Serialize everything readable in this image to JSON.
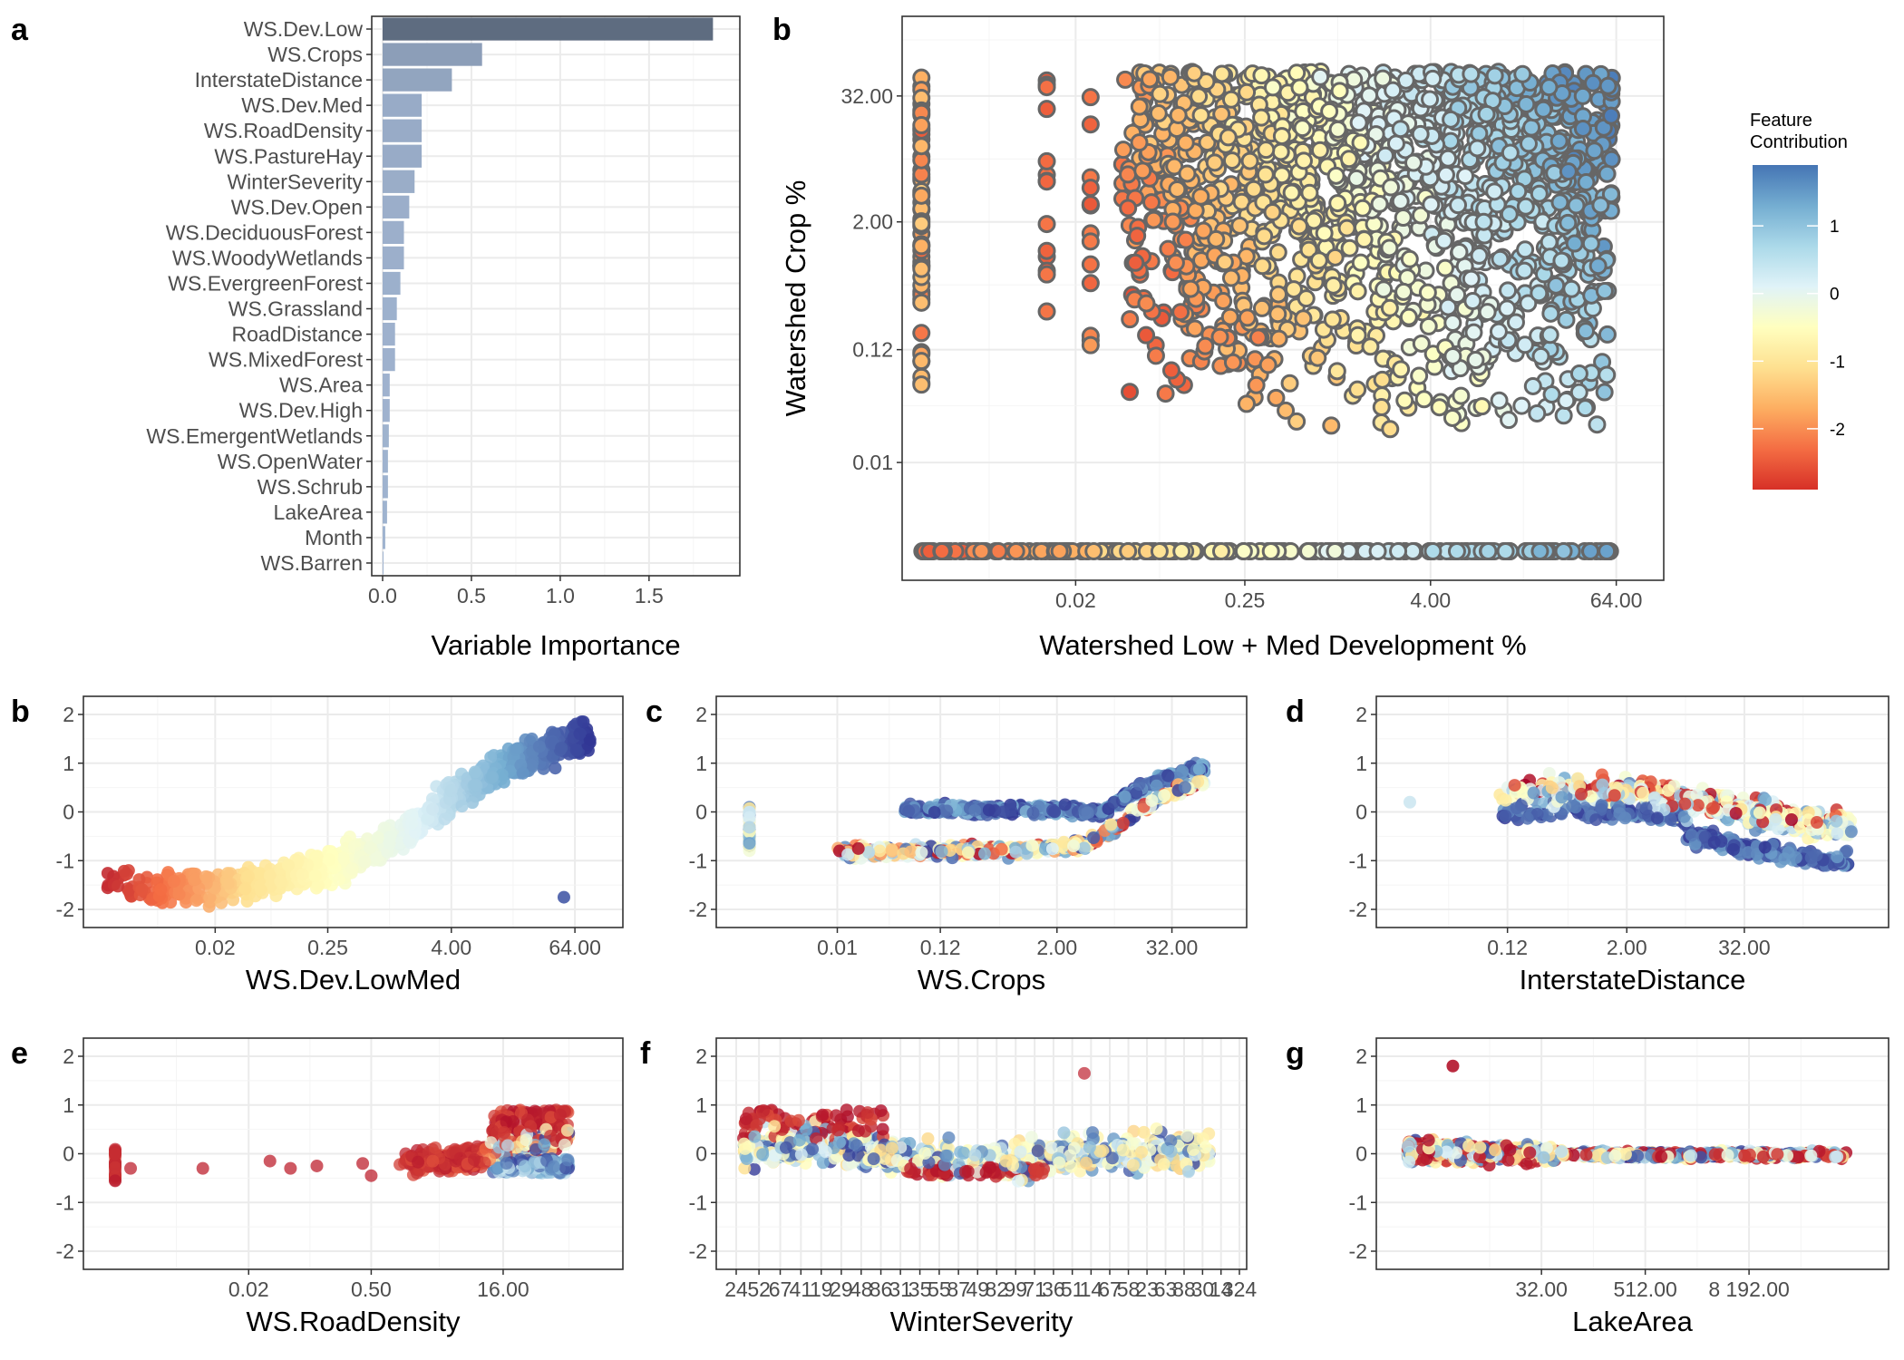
{
  "chart_data": [
    {
      "panel": "a",
      "type": "bar",
      "orientation": "horizontal",
      "xlabel": "Variable Importance",
      "ylabel": "",
      "xlim": [
        0,
        1.95
      ],
      "xticks": [
        "0.0",
        "0.5",
        "1.0",
        "1.5"
      ],
      "grid": true,
      "color_scale": "importance",
      "categories": [
        "WS.Dev.Low",
        "WS.Crops",
        "InterstateDistance",
        "WS.Dev.Med",
        "WS.RoadDensity",
        "WS.PastureHay",
        "WinterSeverity",
        "WS.Dev.Open",
        "WS.DeciduousForest",
        "WS.WoodyWetlands",
        "WS.EvergreenForest",
        "WS.Grassland",
        "RoadDistance",
        "WS.MixedForest",
        "WS.Area",
        "WS.Dev.High",
        "WS.EmergentWetlands",
        "WS.OpenWater",
        "WS.Schrub",
        "LakeArea",
        "Month",
        "WS.Barren"
      ],
      "values": [
        1.86,
        0.56,
        0.39,
        0.22,
        0.22,
        0.22,
        0.18,
        0.15,
        0.12,
        0.12,
        0.1,
        0.08,
        0.07,
        0.07,
        0.04,
        0.04,
        0.035,
        0.03,
        0.03,
        0.025,
        0.015,
        0.005
      ]
    },
    {
      "panel": "b",
      "type": "scatter",
      "xlabel": "Watershed Low + Med Development %",
      "ylabel": "Watershed Crop %",
      "x_scale": "log",
      "y_scale": "log",
      "xticks": [
        "0.02",
        "0.25",
        "4.00",
        "64.00"
      ],
      "yticks": [
        "0.01",
        "0.12",
        "2.00",
        "32.00"
      ],
      "grid": true,
      "legend": {
        "title": "Feature Contribution",
        "position": "right",
        "ticks": [
          "1",
          "0",
          "-1",
          "-2"
        ],
        "range": [
          -2.9,
          1.9
        ]
      },
      "point_outline": "#666666",
      "columns": [
        {
          "x": 0.002,
          "y_range": [
            0.05,
            50
          ],
          "contribution_range": [
            -2.6,
            -1.2
          ]
        },
        {
          "x": 0.013,
          "y_range": [
            0.07,
            45
          ],
          "contribution_range": [
            -2.5,
            -2.2
          ]
        },
        {
          "x": 0.025,
          "y_range": [
            0.07,
            45
          ],
          "contribution_range": [
            -2.5,
            -1.8
          ]
        }
      ],
      "cloud": {
        "x_range": [
          0.04,
          60
        ],
        "y_range": [
          0.02,
          55
        ],
        "contribution_range": [
          -2.6,
          1.8
        ]
      },
      "zero_crop_row": {
        "x_range": [
          0.002,
          60
        ],
        "contribution_range": [
          -2.5,
          1.5
        ]
      }
    },
    {
      "panel": "b",
      "type": "scatter",
      "xlabel": "WS.Dev.LowMed",
      "ylabel": "",
      "x_scale": "log",
      "xticks": [
        "0.02",
        "0.25",
        "4.00",
        "64.00"
      ],
      "yticks": [
        "-2",
        "-1",
        "0",
        "1",
        "2"
      ],
      "ylim": [
        -2.1,
        2.1
      ],
      "grid": true,
      "trend": [
        [
          0.0015,
          -1.7
        ],
        [
          0.02,
          -1.55
        ],
        [
          0.06,
          -1.4
        ],
        [
          0.25,
          -1.1
        ],
        [
          0.8,
          -0.8
        ],
        [
          4,
          0.3
        ],
        [
          15,
          1.0
        ],
        [
          70,
          1.5
        ]
      ]
    },
    {
      "panel": "c",
      "type": "scatter",
      "xlabel": "WS.Crops",
      "ylabel": "",
      "x_scale": "log",
      "xticks": [
        "0.01",
        "0.12",
        "2.00",
        "32.00"
      ],
      "yticks": [
        "-2",
        "-1",
        "0",
        "1",
        "2"
      ],
      "ylim": [
        -2.1,
        2.1
      ],
      "grid": true,
      "upper_band": [
        [
          0.05,
          0.05
        ],
        [
          1,
          0.05
        ],
        [
          6,
          0.0
        ],
        [
          10,
          0.3
        ],
        [
          20,
          0.6
        ],
        [
          60,
          0.9
        ]
      ],
      "lower_band": [
        [
          0.01,
          -0.82
        ],
        [
          0.5,
          -0.8
        ],
        [
          4,
          -0.7
        ],
        [
          8,
          -0.3
        ],
        [
          20,
          0.2
        ],
        [
          60,
          0.6
        ]
      ]
    },
    {
      "panel": "d",
      "type": "scatter",
      "xlabel": "InterstateDistance",
      "ylabel": "",
      "x_scale": "log",
      "xticks": [
        "0.12",
        "2.00",
        "32.00"
      ],
      "yticks": [
        "-2",
        "-1",
        "0",
        "1",
        "2"
      ],
      "ylim": [
        -2.1,
        2.1
      ],
      "grid": true,
      "trend": [
        [
          0.05,
          0.3
        ],
        [
          0.5,
          0.4
        ],
        [
          4,
          0.3
        ],
        [
          30,
          0.0
        ],
        [
          200,
          -0.3
        ]
      ]
    },
    {
      "panel": "e",
      "type": "scatter",
      "xlabel": "WS.RoadDensity",
      "ylabel": "",
      "x_scale": "log",
      "xticks": [
        "0.02",
        "0.50",
        "16.00"
      ],
      "yticks": [
        "-2",
        "-1",
        "0",
        "1",
        "2"
      ],
      "ylim": [
        -2.1,
        2.1
      ],
      "grid": true,
      "trend": [
        [
          0.001,
          -0.3
        ],
        [
          0.1,
          -0.25
        ],
        [
          1,
          -0.2
        ],
        [
          8,
          -0.1
        ],
        [
          25,
          0.2
        ],
        [
          70,
          0.3
        ]
      ]
    },
    {
      "panel": "f",
      "type": "scatter",
      "xlabel": "WinterSeverity",
      "ylabel": "",
      "x_tick_labels_overlap": true,
      "xticks": [
        "24",
        "52",
        "67",
        "41",
        "19",
        "29",
        "48",
        "86",
        "31",
        "35",
        "55",
        "87",
        "49",
        "82",
        "99",
        "71",
        "36",
        "51",
        "14",
        "67",
        "58",
        "23",
        "63",
        "88",
        "30",
        "14",
        "324"
      ],
      "yticks": [
        "-2",
        "-1",
        "0",
        "1",
        "2"
      ],
      "ylim": [
        -2.1,
        2.1
      ],
      "grid": true,
      "trend": [
        [
          0,
          0.1
        ],
        [
          0.15,
          0.2
        ],
        [
          0.3,
          0.0
        ],
        [
          0.5,
          -0.2
        ],
        [
          0.7,
          0.0
        ],
        [
          1.0,
          0.0
        ]
      ]
    },
    {
      "panel": "g",
      "type": "scatter",
      "xlabel": "LakeArea",
      "ylabel": "",
      "x_scale": "log",
      "xticks": [
        "32.00",
        "512.00",
        "8 192.00"
      ],
      "yticks": [
        "-2",
        "-1",
        "0",
        "1",
        "2"
      ],
      "ylim": [
        -2.1,
        2.1
      ],
      "grid": true,
      "outlier": {
        "x": 3,
        "y": 1.8
      },
      "trend": [
        [
          1,
          0.05
        ],
        [
          30,
          0.0
        ],
        [
          500,
          -0.03
        ],
        [
          8000,
          -0.02
        ],
        [
          100000,
          -0.02
        ]
      ]
    }
  ]
}
